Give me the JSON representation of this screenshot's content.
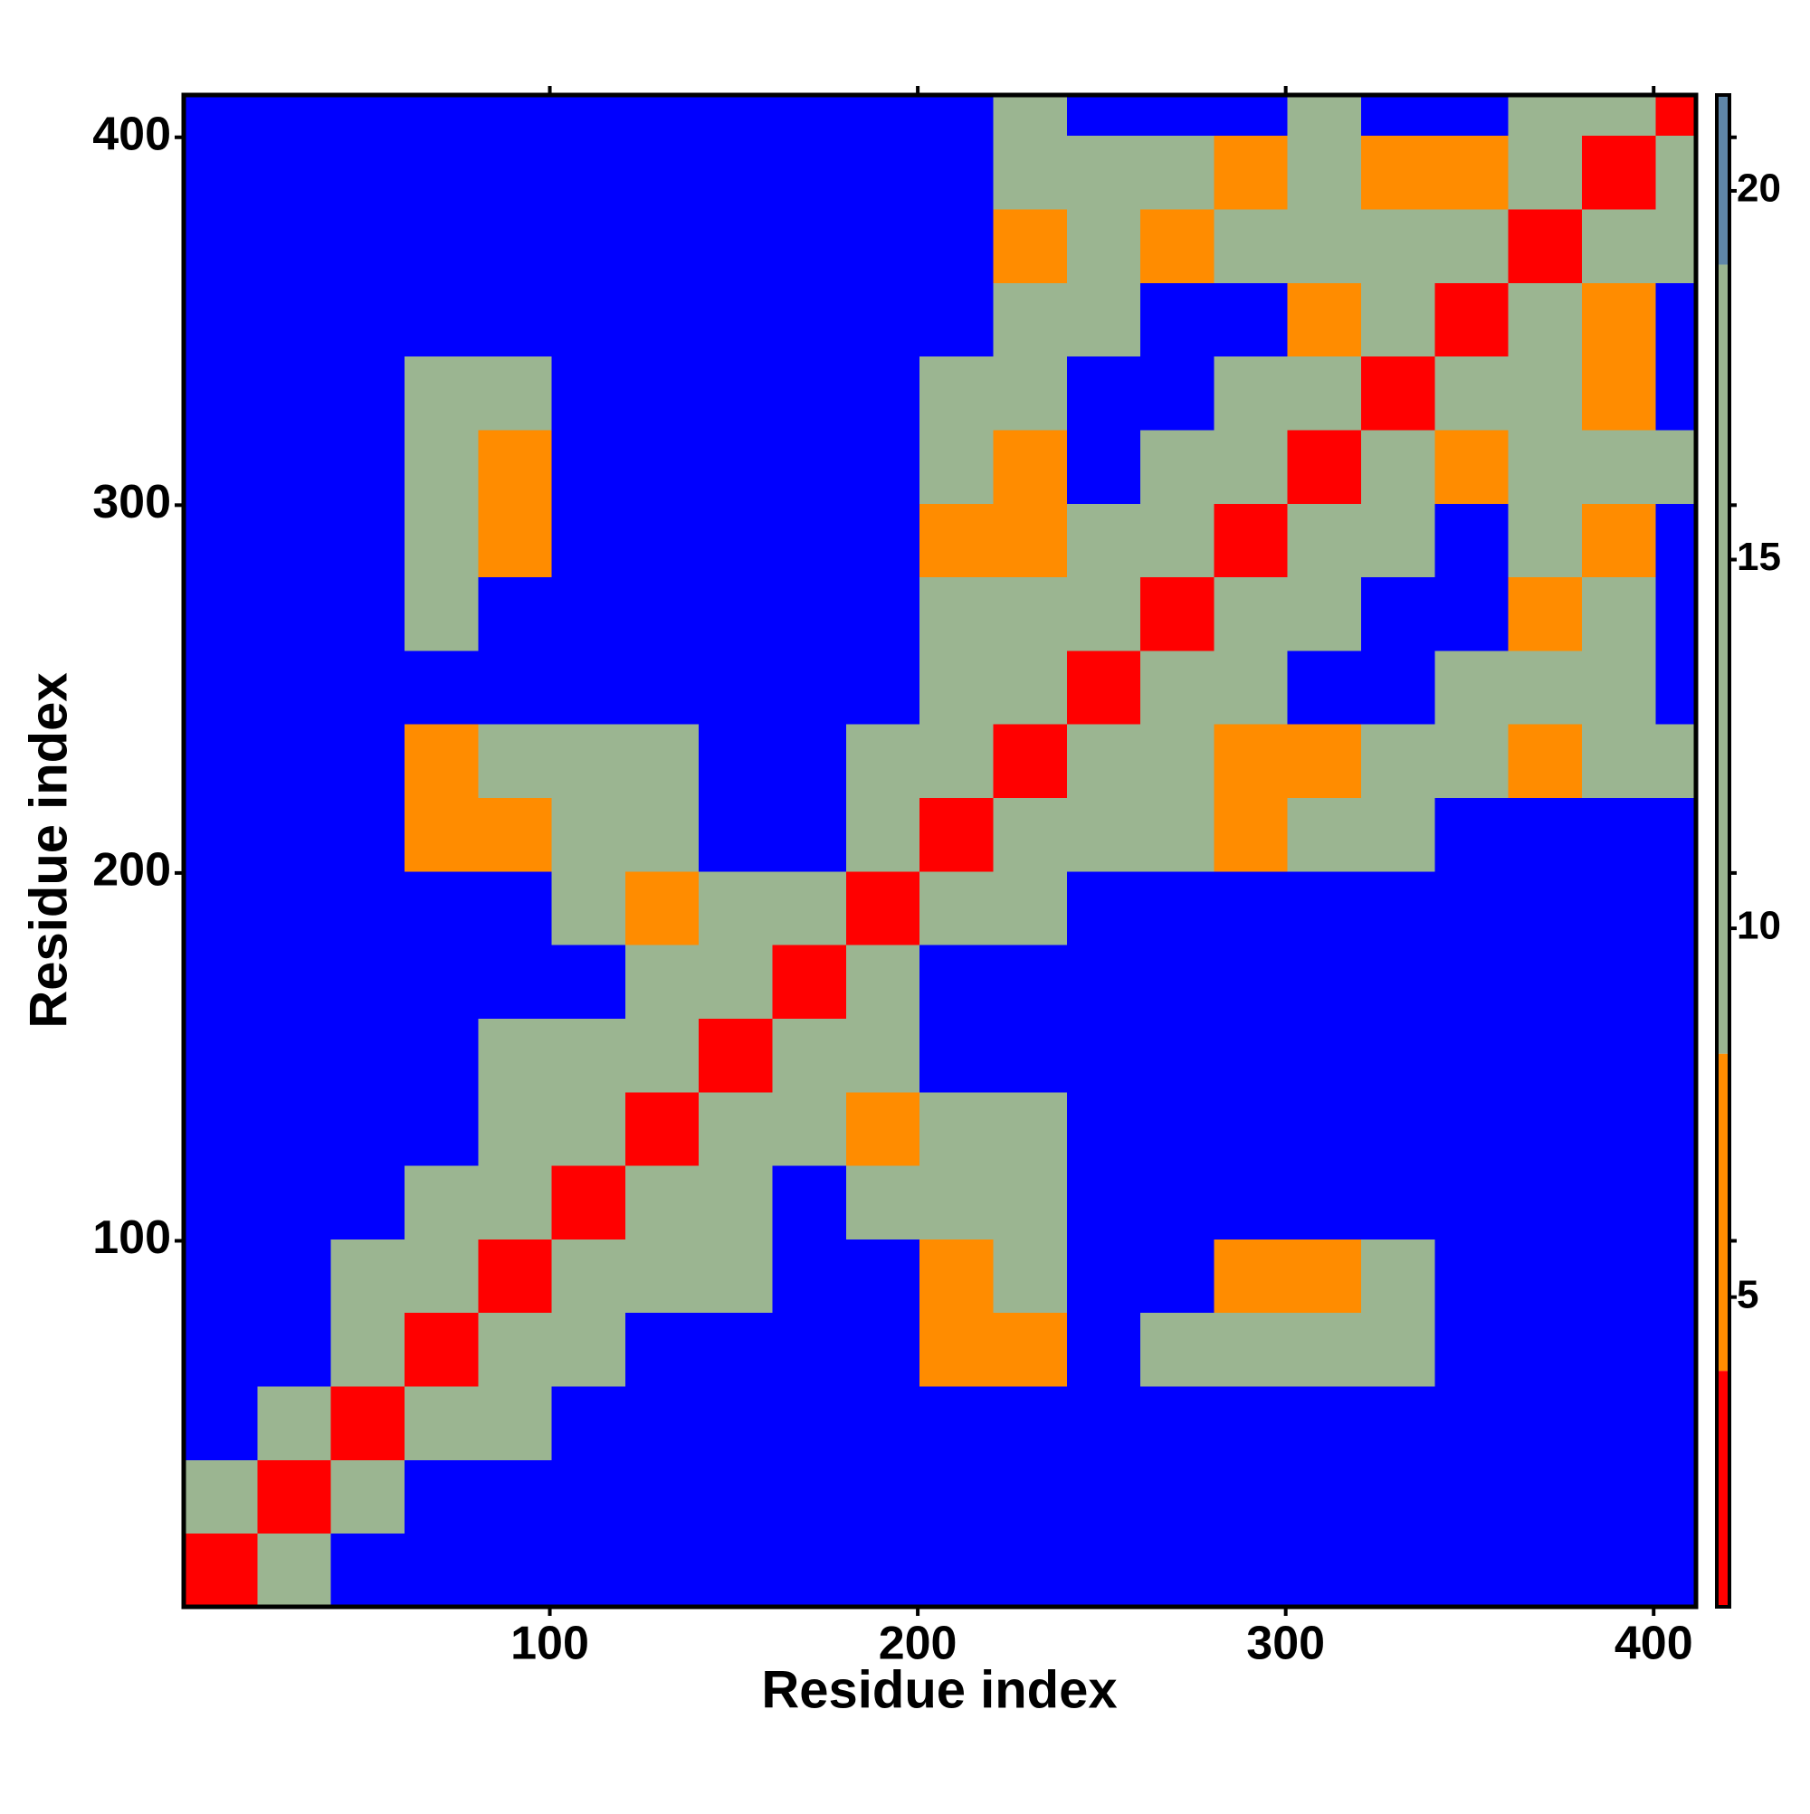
{
  "chart_data": {
    "type": "heatmap",
    "xlabel": "Residue index",
    "ylabel": "Residue index",
    "xlim": [
      0.5,
      411.5
    ],
    "ylim": [
      0.5,
      411.5
    ],
    "xticks": [
      100,
      200,
      300,
      400
    ],
    "yticks": [
      100,
      200,
      300,
      400
    ],
    "x_edges": [
      0.5,
      20.5,
      40.5,
      60.5,
      80.5,
      100.5,
      120.5,
      140.5,
      160.5,
      180.5,
      200.5,
      220.5,
      240.5,
      260.5,
      280.5,
      300.5,
      320.5,
      340.5,
      360.5,
      380.5,
      400.5,
      411.5
    ],
    "y_edges": [
      0.5,
      20.5,
      40.5,
      60.5,
      80.5,
      100.5,
      120.5,
      140.5,
      160.5,
      180.5,
      200.5,
      220.5,
      240.5,
      260.5,
      280.5,
      300.5,
      320.5,
      340.5,
      360.5,
      380.5,
      400.5,
      411.5
    ],
    "z": [
      [
        3,
        14,
        22,
        22,
        22,
        22,
        22,
        22,
        22,
        22,
        22,
        22,
        22,
        22,
        22,
        22,
        22,
        22,
        22,
        22,
        22
      ],
      [
        14,
        3,
        14,
        22,
        22,
        22,
        22,
        22,
        22,
        22,
        22,
        22,
        22,
        22,
        22,
        22,
        22,
        22,
        22,
        22,
        22
      ],
      [
        22,
        14,
        3,
        10,
        12,
        22,
        22,
        22,
        22,
        22,
        22,
        22,
        22,
        22,
        22,
        22,
        22,
        22,
        22,
        22,
        22
      ],
      [
        22,
        22,
        10,
        3,
        10,
        12,
        22,
        22,
        22,
        22,
        7,
        7,
        22,
        12,
        12,
        12,
        12,
        22,
        22,
        22,
        22
      ],
      [
        22,
        22,
        12,
        10,
        3,
        10,
        12,
        12,
        22,
        22,
        7,
        12,
        22,
        22,
        7,
        7,
        12,
        22,
        22,
        22,
        22
      ],
      [
        22,
        22,
        22,
        12,
        10,
        3,
        10,
        12,
        22,
        12,
        12,
        12,
        22,
        22,
        22,
        22,
        22,
        22,
        22,
        22,
        22
      ],
      [
        22,
        22,
        22,
        22,
        12,
        10,
        3,
        10,
        12,
        7,
        12,
        12,
        22,
        22,
        22,
        22,
        22,
        22,
        22,
        22,
        22
      ],
      [
        22,
        22,
        22,
        22,
        12,
        12,
        10,
        3,
        10,
        12,
        22,
        22,
        22,
        22,
        22,
        22,
        22,
        22,
        22,
        22,
        22
      ],
      [
        22,
        22,
        22,
        22,
        22,
        22,
        12,
        10,
        3,
        10,
        22,
        22,
        22,
        22,
        22,
        22,
        22,
        22,
        22,
        22,
        22
      ],
      [
        22,
        22,
        22,
        22,
        22,
        12,
        7,
        12,
        10,
        3,
        10,
        12,
        22,
        22,
        22,
        22,
        22,
        22,
        22,
        22,
        22
      ],
      [
        22,
        22,
        22,
        7,
        7,
        12,
        12,
        22,
        22,
        10,
        3,
        10,
        12,
        12,
        7,
        12,
        12,
        22,
        22,
        22,
        22
      ],
      [
        22,
        22,
        22,
        7,
        12,
        12,
        12,
        22,
        22,
        12,
        10,
        3,
        10,
        12,
        7,
        7,
        12,
        12,
        7,
        12,
        16
      ],
      [
        22,
        22,
        22,
        22,
        22,
        22,
        22,
        22,
        22,
        22,
        12,
        10,
        3,
        10,
        12,
        22,
        22,
        12,
        12,
        12,
        22
      ],
      [
        22,
        22,
        22,
        12,
        22,
        22,
        22,
        22,
        22,
        22,
        12,
        12,
        10,
        3,
        10,
        12,
        22,
        22,
        7,
        12,
        22
      ],
      [
        22,
        22,
        22,
        12,
        7,
        22,
        22,
        22,
        22,
        22,
        7,
        7,
        12,
        10,
        3,
        10,
        12,
        22,
        12,
        7,
        22
      ],
      [
        22,
        22,
        22,
        12,
        7,
        22,
        22,
        22,
        22,
        22,
        12,
        7,
        22,
        12,
        10,
        3,
        10,
        7,
        12,
        12,
        12
      ],
      [
        22,
        22,
        22,
        12,
        12,
        22,
        22,
        22,
        22,
        22,
        12,
        12,
        22,
        22,
        12,
        10,
        3,
        10,
        12,
        7,
        22
      ],
      [
        22,
        22,
        22,
        22,
        22,
        22,
        22,
        22,
        22,
        22,
        22,
        12,
        12,
        22,
        22,
        7,
        10,
        3,
        10,
        7,
        22
      ],
      [
        22,
        22,
        22,
        22,
        22,
        22,
        22,
        22,
        22,
        22,
        22,
        7,
        12,
        7,
        12,
        12,
        12,
        10,
        3,
        10,
        12
      ],
      [
        22,
        22,
        22,
        22,
        22,
        22,
        22,
        22,
        22,
        22,
        22,
        12,
        12,
        12,
        7,
        12,
        7,
        7,
        10,
        3,
        10
      ],
      [
        22,
        22,
        22,
        22,
        22,
        22,
        22,
        22,
        22,
        22,
        22,
        16,
        22,
        22,
        22,
        12,
        22,
        22,
        12,
        10,
        3
      ]
    ],
    "clim": [
      0.8,
      21.3
    ],
    "cticks": [
      5,
      10,
      15,
      20
    ],
    "color_breaks": [
      0.8,
      4,
      8.3,
      19,
      21.3
    ],
    "colors": [
      "#ff0000",
      "#ff8c00",
      "#9bb591",
      "#5f86a8"
    ],
    "over_color": "#0000ff"
  }
}
